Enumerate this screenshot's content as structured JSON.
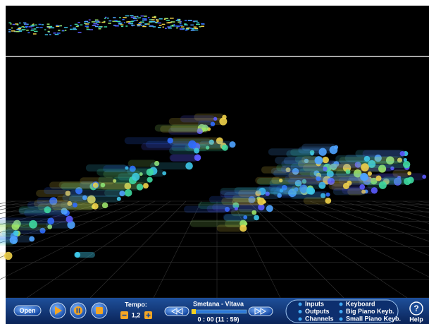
{
  "toolbar": {
    "open": "Open",
    "tempo": {
      "label": "Tempo:",
      "value": "1,2"
    },
    "song": {
      "title": "Smetana - Vltava",
      "time": "0 : 00 (11 : 59)"
    },
    "menu": {
      "left": [
        "Inputs",
        "Outputs",
        "Channels"
      ],
      "right": [
        "Keyboard",
        "Big Piano Keyb.",
        "Small Piano Keyb."
      ]
    },
    "help": {
      "icon": "?",
      "label": "Help"
    }
  }
}
